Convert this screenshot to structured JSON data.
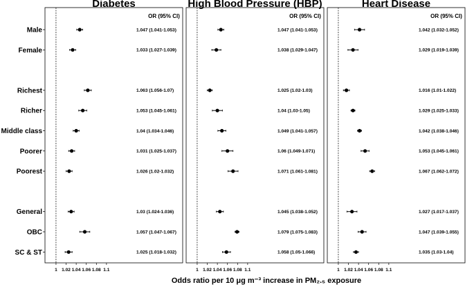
{
  "chart_data": {
    "type": "forest",
    "xlabel": "Odds ratio per 10 μg m⁻³ increase in PM₂.₅ exposure",
    "ci_header": "OR (95% CI)",
    "reference_line": 1,
    "xticks": [
      1,
      1.02,
      1.04,
      1.06,
      1.08,
      1.1
    ],
    "xtick_labels": [
      "1",
      "1.02",
      "1.04",
      "1.06",
      "1.08",
      "1.1"
    ],
    "xlim": [
      0.985,
      1.155
    ],
    "rows": [
      {
        "label": "Male",
        "slot": 0
      },
      {
        "label": "Female",
        "slot": 1
      },
      {
        "label": "Richest",
        "slot": 3
      },
      {
        "label": "Richer",
        "slot": 4
      },
      {
        "label": "Middle class",
        "slot": 5
      },
      {
        "label": "Poorer",
        "slot": 6
      },
      {
        "label": "Poorest",
        "slot": 7
      },
      {
        "label": "General",
        "slot": 9
      },
      {
        "label": "OBC",
        "slot": 10
      },
      {
        "label": "SC & ST",
        "slot": 11
      }
    ],
    "panels": [
      {
        "title": "Diabetes",
        "estimates": [
          {
            "or": 1.047,
            "lo": 1.041,
            "hi": 1.053,
            "text": "1.047 (1.041-1.053)"
          },
          {
            "or": 1.033,
            "lo": 1.027,
            "hi": 1.039,
            "text": "1.033 (1.027-1.039)"
          },
          {
            "or": 1.063,
            "lo": 1.056,
            "hi": 1.07,
            "text": "1.063 (1.056-1.07)"
          },
          {
            "or": 1.053,
            "lo": 1.045,
            "hi": 1.061,
            "text": "1.053 (1.045-1.061)"
          },
          {
            "or": 1.04,
            "lo": 1.034,
            "hi": 1.046,
            "text": "1.04 (1.034-1.046)"
          },
          {
            "or": 1.031,
            "lo": 1.025,
            "hi": 1.037,
            "text": "1.031 (1.025-1.037)"
          },
          {
            "or": 1.026,
            "lo": 1.02,
            "hi": 1.032,
            "text": "1.026 (1.02-1.032)"
          },
          {
            "or": 1.03,
            "lo": 1.024,
            "hi": 1.036,
            "text": "1.03 (1.024-1.036)"
          },
          {
            "or": 1.057,
            "lo": 1.047,
            "hi": 1.067,
            "text": "1.057 (1.047-1.067)"
          },
          {
            "or": 1.025,
            "lo": 1.018,
            "hi": 1.032,
            "text": "1.025 (1.018-1.032)"
          }
        ]
      },
      {
        "title": "High Blood Pressure (HBP)",
        "estimates": [
          {
            "or": 1.047,
            "lo": 1.041,
            "hi": 1.053,
            "text": "1.047 (1.041-1.053)"
          },
          {
            "or": 1.038,
            "lo": 1.029,
            "hi": 1.047,
            "text": "1.038 (1.029-1.047)"
          },
          {
            "or": 1.025,
            "lo": 1.02,
            "hi": 1.03,
            "text": "1.025 (1.02-1.03)"
          },
          {
            "or": 1.04,
            "lo": 1.03,
            "hi": 1.05,
            "text": "1.04 (1.03-1.05)"
          },
          {
            "or": 1.049,
            "lo": 1.041,
            "hi": 1.057,
            "text": "1.049 (1.041-1.057)"
          },
          {
            "or": 1.06,
            "lo": 1.049,
            "hi": 1.071,
            "text": "1.06 (1.049-1.071)"
          },
          {
            "or": 1.071,
            "lo": 1.061,
            "hi": 1.081,
            "text": "1.071 (1.061-1.081)"
          },
          {
            "or": 1.045,
            "lo": 1.038,
            "hi": 1.052,
            "text": "1.045 (1.038-1.052)"
          },
          {
            "or": 1.079,
            "lo": 1.075,
            "hi": 1.083,
            "text": "1.079 (1.075-1.083)"
          },
          {
            "or": 1.058,
            "lo": 1.05,
            "hi": 1.066,
            "text": "1.058 (1.05-1.066)"
          }
        ]
      },
      {
        "title": "Heart Disease",
        "estimates": [
          {
            "or": 1.042,
            "lo": 1.032,
            "hi": 1.052,
            "text": "1.042 (1.032-1.052)"
          },
          {
            "or": 1.029,
            "lo": 1.019,
            "hi": 1.039,
            "text": "1.029 (1.019-1.039)"
          },
          {
            "or": 1.016,
            "lo": 1.01,
            "hi": 1.022,
            "text": "1.016 (1.01-1.022)"
          },
          {
            "or": 1.029,
            "lo": 1.025,
            "hi": 1.033,
            "text": "1.029 (1.025-1.033)"
          },
          {
            "or": 1.042,
            "lo": 1.038,
            "hi": 1.046,
            "text": "1.042 (1.038-1.046)"
          },
          {
            "or": 1.053,
            "lo": 1.045,
            "hi": 1.061,
            "text": "1.053 (1.045-1.061)"
          },
          {
            "or": 1.067,
            "lo": 1.062,
            "hi": 1.072,
            "text": "1.067 (1.062-1.072)"
          },
          {
            "or": 1.027,
            "lo": 1.017,
            "hi": 1.037,
            "text": "1.027 (1.017-1.037)"
          },
          {
            "or": 1.047,
            "lo": 1.039,
            "hi": 1.055,
            "text": "1.047 (1.039-1.055)"
          },
          {
            "or": 1.035,
            "lo": 1.03,
            "hi": 1.04,
            "text": "1.035 (1.03-1.04)"
          }
        ]
      }
    ]
  }
}
